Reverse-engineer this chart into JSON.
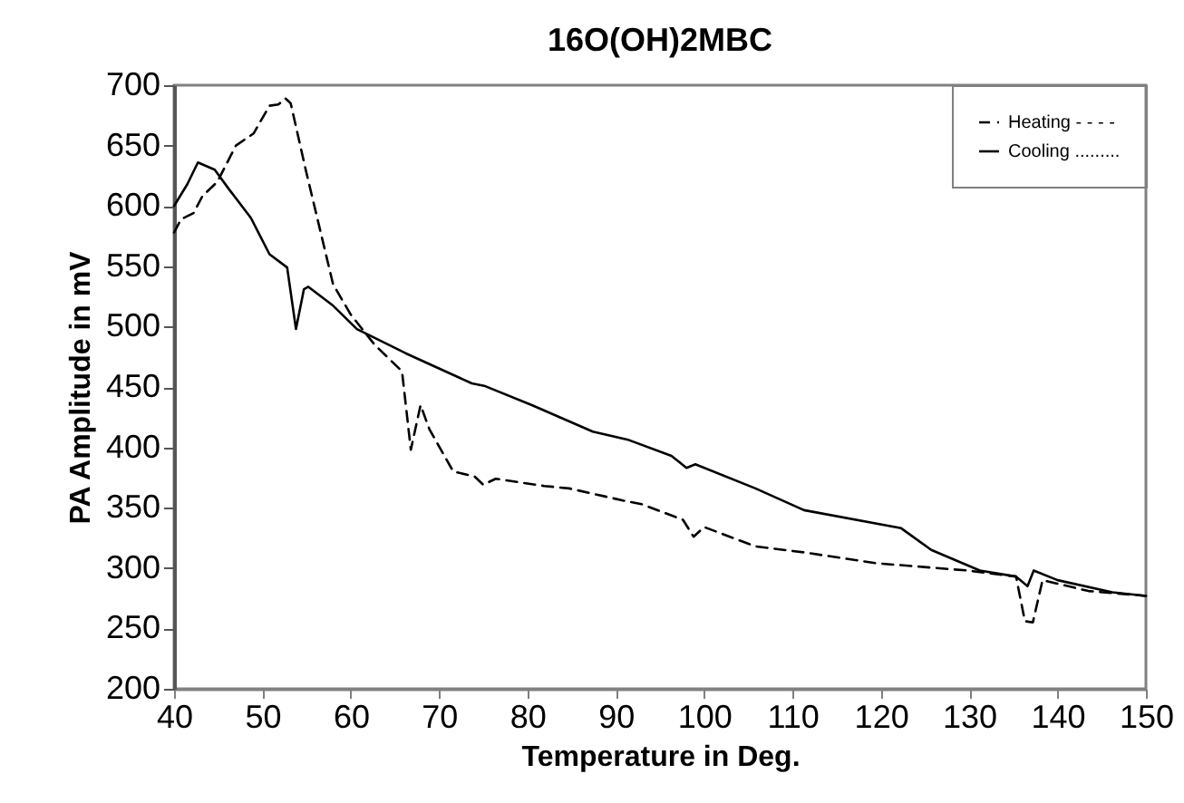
{
  "chart_data": {
    "type": "line",
    "title": "16O(OH)2MBC",
    "xlabel": "Temperature in Deg.",
    "ylabel": "PA Amplitude in mV",
    "xlim": [
      40,
      150
    ],
    "xticks": [
      40,
      50,
      60,
      70,
      80,
      90,
      100,
      110,
      120,
      130,
      140,
      150
    ],
    "ylim": [
      200,
      700
    ],
    "yticks": [
      200,
      250,
      300,
      350,
      400,
      450,
      500,
      550,
      600,
      650,
      700
    ],
    "grid": false,
    "legend": "top right",
    "marker": "none",
    "series": [
      {
        "name": "Heating - - - -",
        "color": "#000000",
        "line_style": "dashed",
        "x": [
          40,
          40.8,
          42.2,
          43.2,
          44.9,
          47,
          49,
          50.8,
          51.8,
          52.6,
          53.2,
          54.9,
          58,
          60,
          62.7,
          65.8,
          66.8,
          67.9,
          68.9,
          71.6,
          74,
          75,
          76.4,
          81.9,
          84.7,
          90.8,
          92.9,
          97.6,
          98.8,
          100,
          105.8,
          111.3,
          119.5,
          129.8,
          135.3,
          136.3,
          137.2,
          138.3,
          143.5,
          150
        ],
        "values": [
          578,
          589,
          594,
          608,
          620,
          650,
          660,
          683,
          684,
          689,
          685,
          630,
          535,
          510,
          485,
          463,
          398,
          435,
          415,
          380,
          376,
          369,
          374,
          368,
          366,
          356,
          353,
          340,
          326,
          334,
          318,
          313,
          304,
          298,
          293,
          256,
          255,
          290,
          281,
          277
        ]
      },
      {
        "name": "Cooling .........",
        "color": "#000000",
        "line_style": "solid",
        "x": [
          40,
          41.5,
          42.7,
          44.6,
          46.3,
          48.7,
          50.8,
          52.8,
          53.8,
          54.7,
          55.2,
          57.9,
          60.7,
          66.2,
          73.7,
          75.1,
          80.5,
          87.4,
          91.5,
          96.3,
          98,
          99,
          105.8,
          111.3,
          122.3,
          125.7,
          131.2,
          135.3,
          136.6,
          137.3,
          140,
          146.2,
          150
        ],
        "values": [
          600,
          618,
          636,
          630,
          613,
          590,
          560,
          549,
          498,
          531,
          533,
          518,
          498,
          478,
          453,
          451,
          435,
          413,
          406,
          393,
          383,
          386,
          366,
          348,
          333,
          315,
          298,
          293,
          285,
          298,
          290,
          280,
          277
        ]
      }
    ]
  }
}
